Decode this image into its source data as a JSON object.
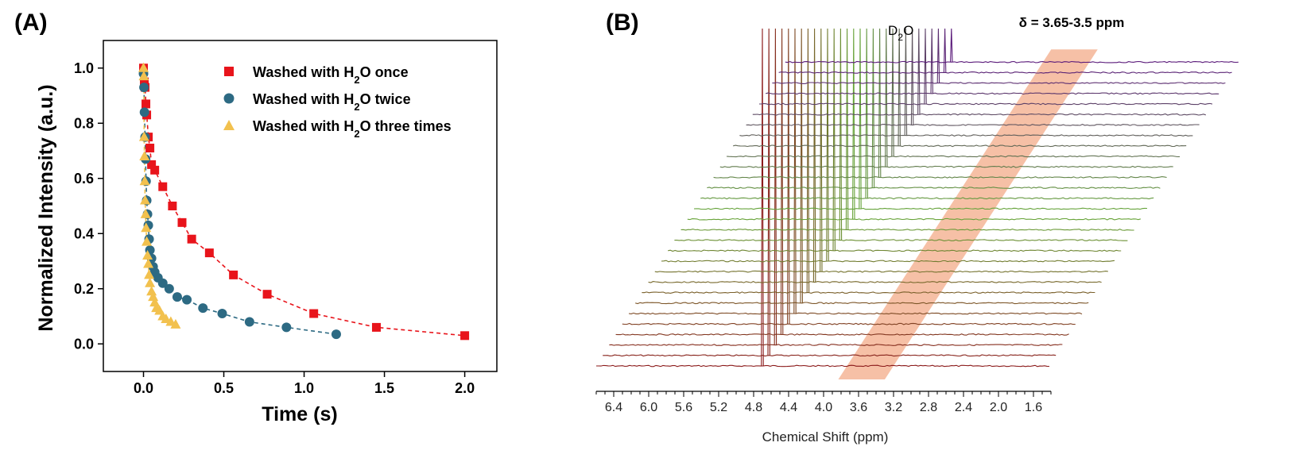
{
  "chart_data": [
    {
      "panel": "(A)",
      "type": "scatter",
      "xlabel": "Time (s)",
      "ylabel": "Normalized Intensity (a.u.)",
      "xlim": [
        -0.25,
        2.2
      ],
      "ylim": [
        -0.1,
        1.1
      ],
      "xticks": [
        "0.0",
        "0.5",
        "1.0",
        "1.5",
        "2.0"
      ],
      "yticks": [
        "0.0",
        "0.2",
        "0.4",
        "0.6",
        "0.8",
        "1.0"
      ],
      "legend_position": "top-right",
      "series": [
        {
          "name": "Washed with H₂O once",
          "name_parts": [
            "Washed with H",
            "2",
            "O once"
          ],
          "marker": "square",
          "color": "#e8141b",
          "x": [
            0.0,
            0.005,
            0.01,
            0.015,
            0.02,
            0.03,
            0.04,
            0.05,
            0.07,
            0.12,
            0.18,
            0.24,
            0.3,
            0.41,
            0.56,
            0.77,
            1.06,
            1.45,
            2.0
          ],
          "y": [
            1.0,
            0.95,
            0.93,
            0.87,
            0.83,
            0.75,
            0.71,
            0.65,
            0.63,
            0.57,
            0.5,
            0.44,
            0.38,
            0.33,
            0.25,
            0.18,
            0.11,
            0.06,
            0.03
          ]
        },
        {
          "name": "Washed with H₂O twice",
          "name_parts": [
            "Washed with H",
            "2",
            "O twice"
          ],
          "marker": "circle",
          "color": "#2d6a83",
          "x": [
            0.0,
            0.003,
            0.006,
            0.01,
            0.013,
            0.016,
            0.02,
            0.025,
            0.03,
            0.035,
            0.04,
            0.05,
            0.06,
            0.07,
            0.09,
            0.12,
            0.16,
            0.21,
            0.27,
            0.37,
            0.49,
            0.66,
            0.89,
            1.2
          ],
          "y": [
            0.98,
            0.93,
            0.84,
            0.75,
            0.67,
            0.59,
            0.52,
            0.47,
            0.43,
            0.38,
            0.34,
            0.31,
            0.28,
            0.26,
            0.24,
            0.22,
            0.2,
            0.17,
            0.16,
            0.13,
            0.11,
            0.08,
            0.06,
            0.035
          ]
        },
        {
          "name": "Washed with H₂O three times",
          "name_parts": [
            "Washed with H",
            "2",
            "O three times"
          ],
          "marker": "triangle",
          "color": "#f2c14e",
          "x": [
            0.0,
            0.002,
            0.004,
            0.006,
            0.008,
            0.01,
            0.013,
            0.016,
            0.02,
            0.025,
            0.03,
            0.035,
            0.04,
            0.05,
            0.06,
            0.07,
            0.08,
            0.1,
            0.12,
            0.14,
            0.17,
            0.2
          ],
          "y": [
            1.0,
            0.97,
            0.75,
            0.68,
            0.59,
            0.52,
            0.47,
            0.42,
            0.37,
            0.32,
            0.29,
            0.25,
            0.22,
            0.19,
            0.17,
            0.15,
            0.13,
            0.12,
            0.1,
            0.09,
            0.08,
            0.07
          ]
        }
      ]
    },
    {
      "panel": "(B)",
      "type": "line",
      "subtype": "stacked NMR spectra (waterfall)",
      "xlabel": "Chemical Shift (ppm)",
      "xlim": [
        6.6,
        1.4
      ],
      "xticks": [
        "6.4",
        "6.0",
        "5.6",
        "5.2",
        "4.8",
        "4.4",
        "4.0",
        "3.6",
        "3.2",
        "2.8",
        "2.4",
        "2.0",
        "1.6"
      ],
      "spectrum_count": 30,
      "peak_label_parts": [
        "D",
        "2",
        "O"
      ],
      "peak_ppm": 4.7,
      "annotation": "δ = 3.65-3.5 ppm",
      "highlight_band_ppm": [
        3.65,
        3.5
      ],
      "highlight_color": "#f5b597",
      "color_start": "#8b1a1a",
      "color_mid": "#66a839",
      "color_end": "#5a1a7a"
    }
  ]
}
